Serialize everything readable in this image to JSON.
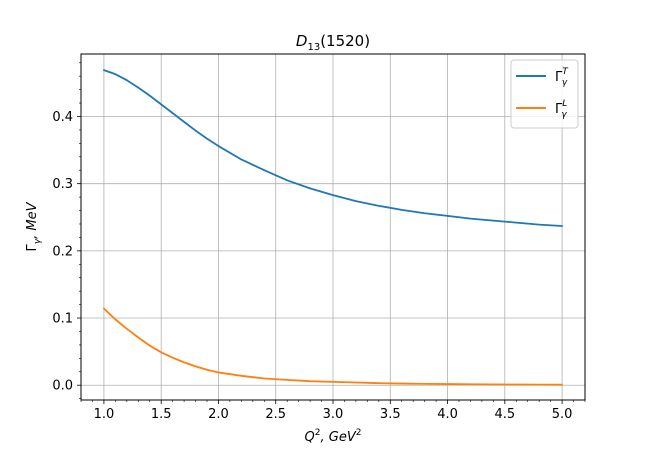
{
  "chart_data": {
    "type": "line",
    "title": {
      "main": "D",
      "sub": "13",
      "rest": "(1520)"
    },
    "xlabel": {
      "base": "Q",
      "sup": "2",
      "rest": ", GeV",
      "sup2": "2"
    },
    "ylabel": {
      "base": "Γ",
      "sub": "γ",
      "rest": ", MeV"
    },
    "xlim": [
      0.8,
      5.2
    ],
    "ylim": [
      -0.022,
      0.493
    ],
    "xticks": [
      1.0,
      1.5,
      2.0,
      2.5,
      3.0,
      3.5,
      4.0,
      4.5,
      5.0
    ],
    "xtick_labels": [
      "1.0",
      "1.5",
      "2.0",
      "2.5",
      "3.0",
      "3.5",
      "4.0",
      "4.5",
      "5.0"
    ],
    "yticks": [
      0.0,
      0.1,
      0.2,
      0.3,
      0.4
    ],
    "ytick_labels": [
      "0.0",
      "0.1",
      "0.2",
      "0.3",
      "0.4"
    ],
    "grid": true,
    "legend_position": "top-right",
    "x": [
      1.0,
      1.1,
      1.2,
      1.3,
      1.4,
      1.5,
      1.6,
      1.7,
      1.8,
      1.9,
      2.0,
      2.2,
      2.4,
      2.6,
      2.8,
      3.0,
      3.2,
      3.4,
      3.6,
      3.8,
      4.0,
      4.2,
      4.4,
      4.6,
      4.8,
      5.0
    ],
    "series": [
      {
        "legend": {
          "base": "Γ",
          "sup": "T",
          "sub": "γ"
        },
        "color": "#1f77b4",
        "values": [
          0.469,
          0.463,
          0.454,
          0.443,
          0.431,
          0.418,
          0.405,
          0.392,
          0.379,
          0.367,
          0.356,
          0.336,
          0.32,
          0.305,
          0.293,
          0.283,
          0.274,
          0.267,
          0.261,
          0.256,
          0.252,
          0.248,
          0.245,
          0.242,
          0.239,
          0.237
        ]
      },
      {
        "legend": {
          "base": "Γ",
          "sup": "L",
          "sub": "γ"
        },
        "color": "#ff7f0e",
        "values": [
          0.114,
          0.098,
          0.084,
          0.071,
          0.059,
          0.049,
          0.041,
          0.034,
          0.028,
          0.023,
          0.019,
          0.014,
          0.01,
          0.008,
          0.006,
          0.005,
          0.004,
          0.003,
          0.0025,
          0.002,
          0.0017,
          0.0014,
          0.0012,
          0.001,
          0.0009,
          0.0008
        ]
      }
    ]
  }
}
